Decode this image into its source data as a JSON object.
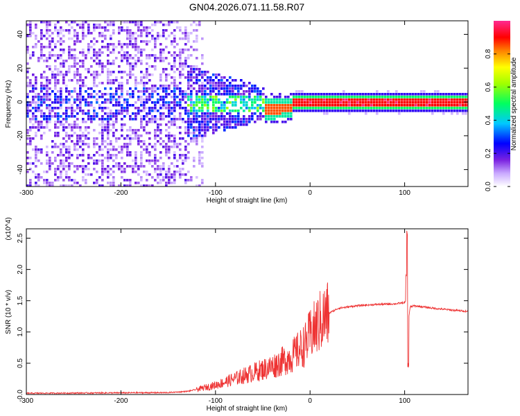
{
  "title": "GN04.2026.071.11.58.R07",
  "colorbar": {
    "label": "Normalized spectral amplitude",
    "ticks": [
      "0.0",
      "0.2",
      "0.4",
      "0.6",
      "0.8"
    ]
  },
  "chart_data": [
    {
      "type": "heatmap",
      "xlabel": "Height of straight line (km)",
      "ylabel": "Frequency (Hz)",
      "xlim": [
        -300,
        167
      ],
      "ylim": [
        -50,
        48
      ],
      "xticks": [
        "-300",
        "-200",
        "-100",
        "0",
        "100"
      ],
      "yticks": [
        "40",
        "20",
        "0",
        "-20",
        "-40"
      ],
      "colormap": [
        "#ffffff",
        "#c8a8ff",
        "#8a2be2",
        "#0000ff",
        "#00ffff",
        "#00ff00",
        "#ffff00",
        "#ff7f00",
        "#ff0000",
        "#ff1493"
      ],
      "colorbar_range": [
        0,
        1
      ],
      "dominant_band": {
        "frequency": 0,
        "x_from": -20,
        "x_to": 167,
        "amplitude": 0.9
      }
    },
    {
      "type": "line",
      "xlabel": "Height of straight line (km)",
      "ylabel": "SNR (10 * v/v)",
      "y_multiplier": "(x10^4)",
      "xlim": [
        -300,
        167
      ],
      "ylim": [
        0,
        2.65
      ],
      "xticks": [
        "-300",
        "-200",
        "-100",
        "0",
        "100"
      ],
      "yticks": [
        "0.0",
        "0.5",
        "1.0",
        "1.5",
        "2.0",
        "2.5"
      ],
      "color": "#ee3333",
      "envelope": {
        "x": [
          -300,
          -150,
          -130,
          -120,
          -100,
          -80,
          -60,
          -40,
          -20,
          -5,
          0,
          10,
          20,
          30,
          50,
          70,
          90,
          100,
          102,
          104,
          106,
          110,
          130,
          150,
          167
        ],
        "y": [
          0.02,
          0.03,
          0.05,
          0.08,
          0.15,
          0.25,
          0.35,
          0.45,
          0.6,
          0.8,
          0.95,
          1.15,
          1.3,
          1.38,
          1.42,
          1.44,
          1.45,
          1.47,
          1.5,
          1.2,
          1.4,
          1.42,
          1.38,
          1.35,
          1.33
        ]
      },
      "annotations": [
        {
          "x": 103,
          "peak": 2.65
        },
        {
          "x": 104,
          "trough": 0.42
        }
      ]
    }
  ]
}
